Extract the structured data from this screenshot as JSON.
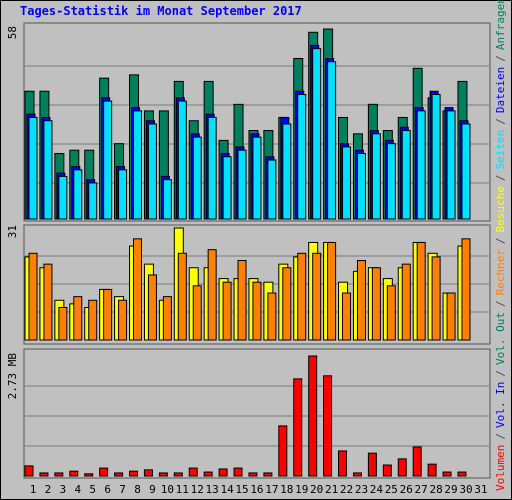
{
  "chart_data": {
    "type": "bar",
    "title": "Tages-Statistik im Monat September 2017",
    "categories": [
      "1",
      "2",
      "3",
      "4",
      "5",
      "6",
      "7",
      "8",
      "9",
      "10",
      "11",
      "12",
      "13",
      "14",
      "15",
      "16",
      "17",
      "18",
      "19",
      "20",
      "21",
      "22",
      "23",
      "24",
      "25",
      "26",
      "27",
      "28",
      "29",
      "30",
      "31"
    ],
    "weekend": [
      "2",
      "3",
      "9",
      "10",
      "16",
      "17",
      "23",
      "24",
      "30"
    ],
    "weekend_color": "#00805c",
    "separator": "/",
    "panels": [
      {
        "ylim": [
          0,
          58
        ],
        "yticks": [
          58
        ],
        "series": [
          {
            "name": "Seiten",
            "color": "#00e0ff",
            "values": [
              31,
              30,
              13,
              15,
              11,
              36,
              15,
              33,
              29,
              12,
              36,
              25,
              31,
              19,
              21,
              25,
              18,
              29,
              38,
              52,
              48,
              22,
              20,
              26,
              23,
              27,
              33,
              38,
              33,
              29,
              null
            ]
          },
          {
            "name": "Dateien",
            "color": "#0000ff",
            "values": [
              32,
              31,
              14,
              16,
              12,
              37,
              16,
              34,
              30,
              13,
              37,
              26,
              32,
              20,
              22,
              26,
              19,
              31,
              39,
              53,
              49,
              23,
              21,
              27,
              24,
              28,
              34,
              39,
              34,
              30,
              null
            ]
          },
          {
            "name": "Anfragen",
            "color": "#00805c",
            "values": [
              39,
              39,
              20,
              21,
              21,
              43,
              23,
              44,
              33,
              33,
              42,
              30,
              42,
              24,
              35,
              27,
              27,
              31,
              49,
              57,
              58,
              31,
              26,
              35,
              27,
              31,
              46,
              37,
              33,
              42,
              null
            ]
          }
        ]
      },
      {
        "ylim": [
          0,
          31
        ],
        "yticks": [
          31
        ],
        "series": [
          {
            "name": "Rechner",
            "color": "#ff8000",
            "values": [
              24,
              21,
              9,
              12,
              11,
              14,
              11,
              28,
              18,
              12,
              24,
              15,
              25,
              16,
              22,
              16,
              13,
              20,
              24,
              24,
              27,
              13,
              22,
              20,
              15,
              21,
              27,
              23,
              13,
              28,
              null
            ]
          },
          {
            "name": "Besuche",
            "color": "#ffff00",
            "values": [
              23,
              20,
              11,
              10,
              9,
              14,
              12,
              26,
              21,
              11,
              31,
              20,
              20,
              17,
              17,
              17,
              16,
              21,
              23,
              27,
              27,
              16,
              19,
              20,
              17,
              20,
              27,
              24,
              13,
              26,
              null
            ]
          }
        ]
      },
      {
        "ylim": [
          0,
          2.73
        ],
        "yticks": [
          {
            "value": 2.73,
            "label": "2.73 MB"
          }
        ],
        "series": [
          {
            "name": "Volumen",
            "color": "#ff0000",
            "values": [
              0.23,
              0.07,
              0.07,
              0.11,
              0.05,
              0.18,
              0.07,
              0.11,
              0.14,
              0.07,
              0.07,
              0.18,
              0.09,
              0.16,
              0.18,
              0.07,
              0.07,
              1.14,
              2.21,
              2.73,
              2.28,
              0.57,
              0.07,
              0.52,
              0.25,
              0.39,
              0.66,
              0.27,
              0.09,
              0.09,
              null
            ]
          }
        ],
        "unplotted": [
          {
            "name": "Vol. In",
            "color": "#0000ff"
          },
          {
            "name": "Vol. Out",
            "color": "#00805c"
          }
        ]
      }
    ]
  }
}
